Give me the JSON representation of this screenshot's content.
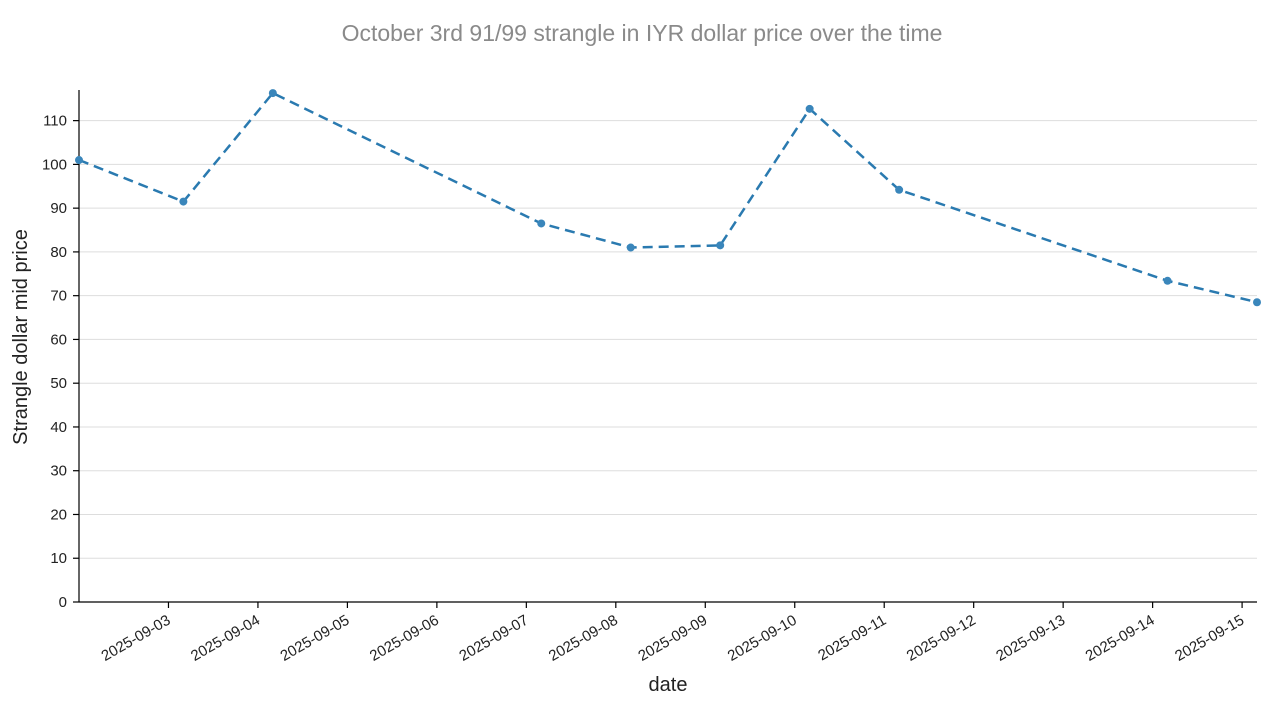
{
  "colors": {
    "line": "#2a7ab0",
    "point": "#3a86bb",
    "title": "#8a8a8a",
    "grid": "#dddddd"
  },
  "chart_data": {
    "type": "line",
    "title": "October 3rd 91/99 strangle in IYR dollar price over the time",
    "xlabel": "date",
    "ylabel": "Strangle dollar mid price",
    "xlim": [
      "2025-09-02T00:00",
      "2025-09-15T04:00"
    ],
    "ylim": [
      0,
      117
    ],
    "yticks": [
      0,
      10,
      20,
      30,
      40,
      50,
      60,
      70,
      80,
      90,
      100,
      110
    ],
    "xticks": [
      "2025-09-03",
      "2025-09-04",
      "2025-09-05",
      "2025-09-06",
      "2025-09-07",
      "2025-09-08",
      "2025-09-09",
      "2025-09-10",
      "2025-09-11",
      "2025-09-12",
      "2025-09-13",
      "2025-09-14",
      "2025-09-15"
    ],
    "grid": "horizontal",
    "line_style": "dashed",
    "series": [
      {
        "x": [
          "2025-09-02T00:00",
          "2025-09-03T04:00",
          "2025-09-04T04:00",
          "2025-09-07T04:00",
          "2025-09-08T04:00",
          "2025-09-09T04:00",
          "2025-09-10T04:00",
          "2025-09-11T04:00",
          "2025-09-14T04:00",
          "2025-09-15T04:00"
        ],
        "y": [
          101,
          91.5,
          116.3,
          86.5,
          81,
          81.5,
          112.7,
          94.2,
          73.4,
          68.5
        ]
      }
    ]
  }
}
